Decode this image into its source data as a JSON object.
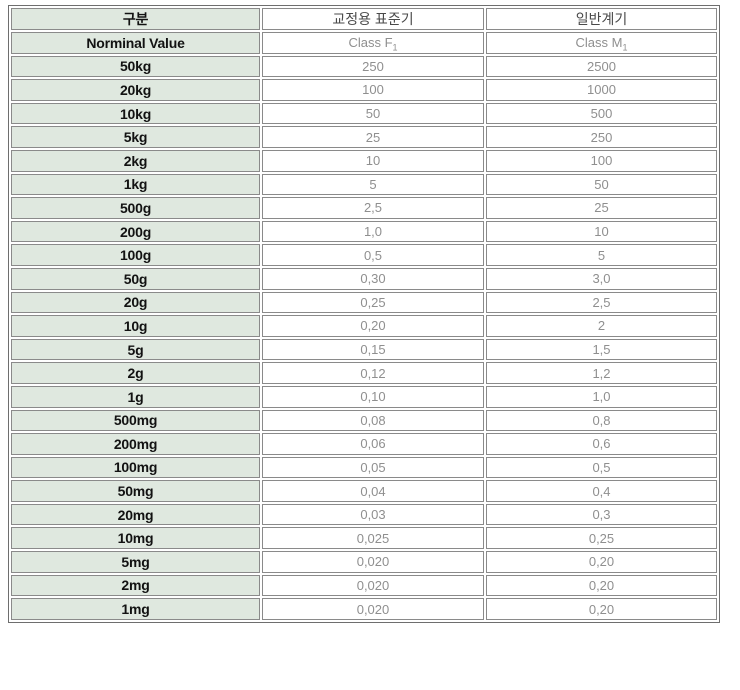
{
  "chart_data": {
    "type": "table",
    "title": "",
    "header_row1": {
      "col1": "구분",
      "col2": "교정용 표준기",
      "col3": "일반계기"
    },
    "header_row2": {
      "col1": "Norminal Value",
      "col2_text": "Class F",
      "col2_sub": "1",
      "col3_text": "Class M",
      "col3_sub": "1"
    },
    "rows": [
      {
        "label": "50kg",
        "f1": "250",
        "m1": "2500"
      },
      {
        "label": "20kg",
        "f1": "100",
        "m1": "1000"
      },
      {
        "label": "10kg",
        "f1": "50",
        "m1": "500"
      },
      {
        "label": "5kg",
        "f1": "25",
        "m1": "250"
      },
      {
        "label": "2kg",
        "f1": "10",
        "m1": "100"
      },
      {
        "label": "1kg",
        "f1": "5",
        "m1": "50"
      },
      {
        "label": "500g",
        "f1": "2,5",
        "m1": "25"
      },
      {
        "label": "200g",
        "f1": "1,0",
        "m1": "10"
      },
      {
        "label": "100g",
        "f1": "0,5",
        "m1": "5"
      },
      {
        "label": "50g",
        "f1": "0,30",
        "m1": "3,0"
      },
      {
        "label": "20g",
        "f1": "0,25",
        "m1": "2,5"
      },
      {
        "label": "10g",
        "f1": "0,20",
        "m1": "2"
      },
      {
        "label": "5g",
        "f1": "0,15",
        "m1": "1,5"
      },
      {
        "label": "2g",
        "f1": "0,12",
        "m1": "1,2"
      },
      {
        "label": "1g",
        "f1": "0,10",
        "m1": "1,0"
      },
      {
        "label": "500mg",
        "f1": "0,08",
        "m1": "0,8"
      },
      {
        "label": "200mg",
        "f1": "0,06",
        "m1": "0,6"
      },
      {
        "label": "100mg",
        "f1": "0,05",
        "m1": "0,5"
      },
      {
        "label": "50mg",
        "f1": "0,04",
        "m1": "0,4"
      },
      {
        "label": "20mg",
        "f1": "0,03",
        "m1": "0,3"
      },
      {
        "label": "10mg",
        "f1": "0,025",
        "m1": "0,25"
      },
      {
        "label": "5mg",
        "f1": "0,020",
        "m1": "0,20"
      },
      {
        "label": "2mg",
        "f1": "0,020",
        "m1": "0,20"
      },
      {
        "label": "1mg",
        "f1": "0,020",
        "m1": "0,20"
      }
    ]
  },
  "colors": {
    "row_label_bg": "#dfe8df",
    "data_bg": "#ffffff",
    "cell_border": "#8a8a8a",
    "outer_border": "#6e6e6e",
    "label_text": "#121212",
    "kheader_text": "#4a4a4a",
    "value_text": "#8f8f8f"
  }
}
